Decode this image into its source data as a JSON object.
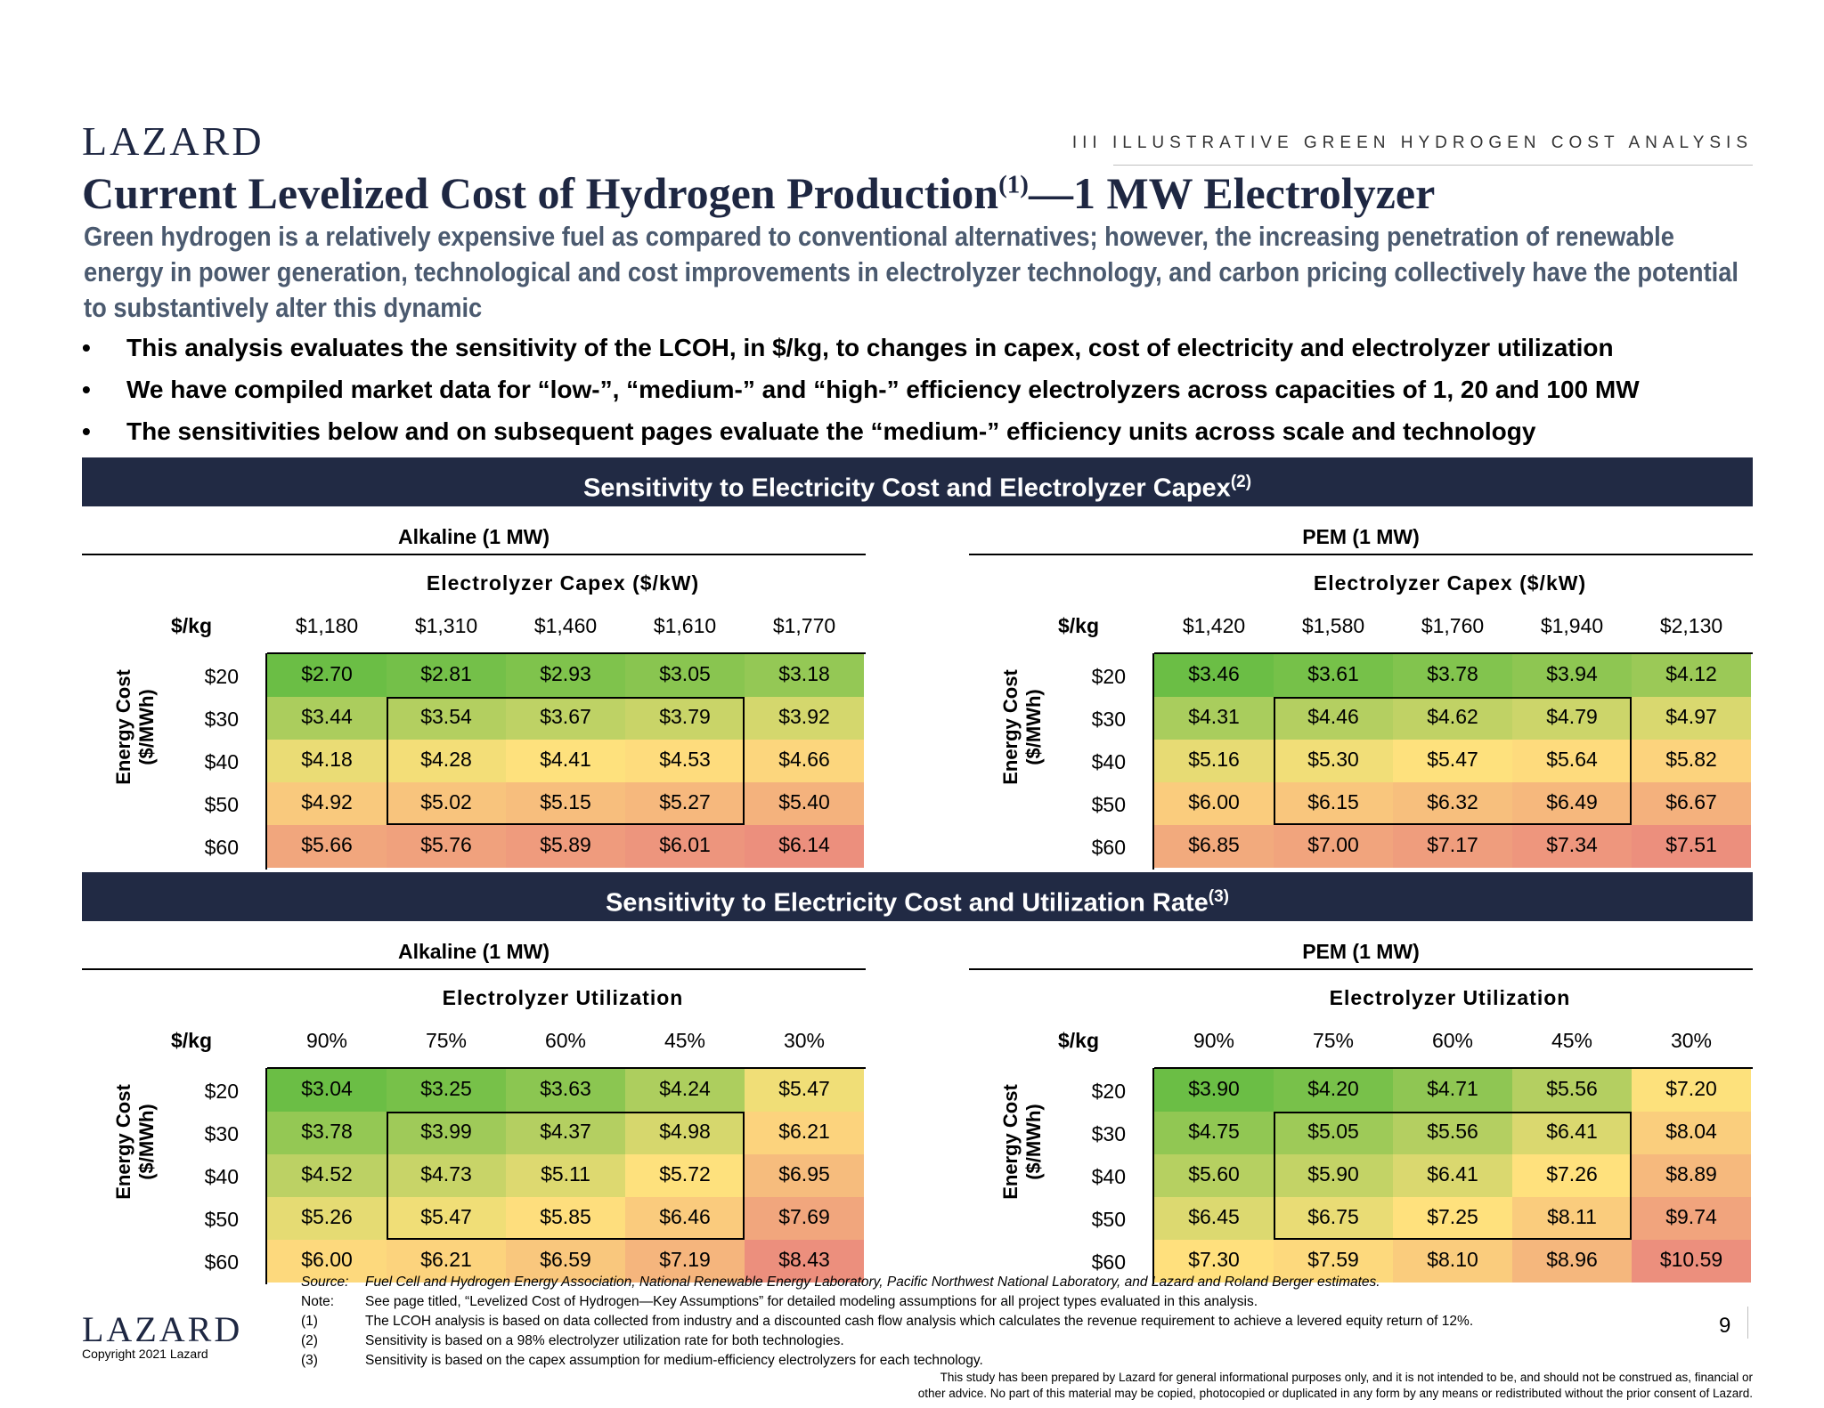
{
  "header": {
    "logo": "LAZARD",
    "section_label": "III   ILLUSTRATIVE GREEN HYDROGEN COST ANALYSIS",
    "title_main": "Current Levelized Cost of Hydrogen Production",
    "title_sup": "(1)",
    "title_tail": "—1 MW Electrolyzer",
    "subtitle": "Green hydrogen is a relatively expensive fuel as compared to conventional alternatives; however, the increasing penetration of renewable energy in power generation, technological and cost improvements in electrolyzer technology, and carbon pricing collectively have the potential to substantively alter this dynamic"
  },
  "bullets": [
    "This analysis evaluates the sensitivity of the LCOH, in $/kg, to changes in capex, cost of electricity and electrolyzer utilization",
    "We have compiled market data for “low-”, “medium-” and “high-” efficiency electrolyzers across capacities of 1, 20 and 100 MW",
    "The sensitivities below and on subsequent pages evaluate the “medium-” efficiency units across scale and technology"
  ],
  "bullet_symbol": "•",
  "bands": [
    {
      "text": "Sensitivity to Electricity Cost and Electrolyzer Capex",
      "sup": "(2)"
    },
    {
      "text": "Sensitivity to Electricity Cost and Utilization Rate",
      "sup": "(3)"
    }
  ],
  "tables": [
    {
      "title": "Alkaline (1 MW)",
      "axis_title": "Electrolyzer Capex ($/kW)",
      "unit": "$/kg",
      "y_label_1": "Energy Cost",
      "y_label_2": "($/MWh)",
      "cols": [
        "$1,180",
        "$1,310",
        "$1,460",
        "$1,610",
        "$1,770"
      ],
      "rows": [
        "$20",
        "$30",
        "$40",
        "$50",
        "$60"
      ],
      "cells": [
        [
          "$2.70",
          "$2.81",
          "$2.93",
          "$3.05",
          "$3.18"
        ],
        [
          "$3.44",
          "$3.54",
          "$3.67",
          "$3.79",
          "$3.92"
        ],
        [
          "$4.18",
          "$4.28",
          "$4.41",
          "$4.53",
          "$4.66"
        ],
        [
          "$4.92",
          "$5.02",
          "$5.15",
          "$5.27",
          "$5.40"
        ],
        [
          "$5.66",
          "$5.76",
          "$5.89",
          "$6.01",
          "$6.14"
        ]
      ]
    },
    {
      "title": "PEM (1 MW)",
      "axis_title": "Electrolyzer Capex ($/kW)",
      "unit": "$/kg",
      "y_label_1": "Energy Cost",
      "y_label_2": "($/MWh)",
      "cols": [
        "$1,420",
        "$1,580",
        "$1,760",
        "$1,940",
        "$2,130"
      ],
      "rows": [
        "$20",
        "$30",
        "$40",
        "$50",
        "$60"
      ],
      "cells": [
        [
          "$3.46",
          "$3.61",
          "$3.78",
          "$3.94",
          "$4.12"
        ],
        [
          "$4.31",
          "$4.46",
          "$4.62",
          "$4.79",
          "$4.97"
        ],
        [
          "$5.16",
          "$5.30",
          "$5.47",
          "$5.64",
          "$5.82"
        ],
        [
          "$6.00",
          "$6.15",
          "$6.32",
          "$6.49",
          "$6.67"
        ],
        [
          "$6.85",
          "$7.00",
          "$7.17",
          "$7.34",
          "$7.51"
        ]
      ]
    },
    {
      "title": "Alkaline (1 MW)",
      "axis_title": "Electrolyzer Utilization",
      "unit": "$/kg",
      "y_label_1": "Energy Cost",
      "y_label_2": "($/MWh)",
      "cols": [
        "90%",
        "75%",
        "60%",
        "45%",
        "30%"
      ],
      "rows": [
        "$20",
        "$30",
        "$40",
        "$50",
        "$60"
      ],
      "cells": [
        [
          "$3.04",
          "$3.25",
          "$3.63",
          "$4.24",
          "$5.47"
        ],
        [
          "$3.78",
          "$3.99",
          "$4.37",
          "$4.98",
          "$6.21"
        ],
        [
          "$4.52",
          "$4.73",
          "$5.11",
          "$5.72",
          "$6.95"
        ],
        [
          "$5.26",
          "$5.47",
          "$5.85",
          "$6.46",
          "$7.69"
        ],
        [
          "$6.00",
          "$6.21",
          "$6.59",
          "$7.19",
          "$8.43"
        ]
      ]
    },
    {
      "title": "PEM (1 MW)",
      "axis_title": "Electrolyzer Utilization",
      "unit": "$/kg",
      "y_label_1": "Energy Cost",
      "y_label_2": "($/MWh)",
      "cols": [
        "90%",
        "75%",
        "60%",
        "45%",
        "30%"
      ],
      "rows": [
        "$20",
        "$30",
        "$40",
        "$50",
        "$60"
      ],
      "cells": [
        [
          "$3.90",
          "$4.20",
          "$4.71",
          "$5.56",
          "$7.20"
        ],
        [
          "$4.75",
          "$5.05",
          "$5.56",
          "$6.41",
          "$8.04"
        ],
        [
          "$5.60",
          "$5.90",
          "$6.41",
          "$7.26",
          "$8.89"
        ],
        [
          "$6.45",
          "$6.75",
          "$7.25",
          "$8.11",
          "$9.74"
        ],
        [
          "$7.30",
          "$7.59",
          "$8.10",
          "$8.96",
          "$10.59"
        ]
      ]
    }
  ],
  "heat_colors": {
    "low": "#6bbe45",
    "mid": "#ffe17d",
    "high": "#ec8f7d"
  },
  "footnotes": {
    "source_key": "Source:",
    "source": "Fuel Cell and Hydrogen Energy Association, National Renewable Energy Laboratory, Pacific Northwest National Laboratory, and Lazard and Roland Berger estimates.",
    "note_key": "Note:",
    "note": "See page titled, “Levelized Cost of Hydrogen—Key Assumptions” for detailed modeling assumptions for all project types evaluated in this analysis.",
    "n1_key": "(1)",
    "n1": "The LCOH analysis is based on data collected from industry and a discounted cash flow analysis which calculates the revenue requirement to achieve a levered equity return of 12%.",
    "n2_key": "(2)",
    "n2": "Sensitivity is based on a 98% electrolyzer utilization rate for both technologies.",
    "n3_key": "(3)",
    "n3": "Sensitivity is based on the capex assumption for medium-efficiency electrolyzers for each technology."
  },
  "footer": {
    "logo": "LAZARD",
    "copyright": "Copyright 2021 Lazard",
    "page_number": "9",
    "disclaimer_1": "This study has been prepared by Lazard for general informational purposes only, and it is not intended to be, and should not be construed as, financial or",
    "disclaimer_2": "other advice. No part of this material may be copied, photocopied or duplicated in any form by any means or redistributed without the prior consent of Lazard."
  }
}
